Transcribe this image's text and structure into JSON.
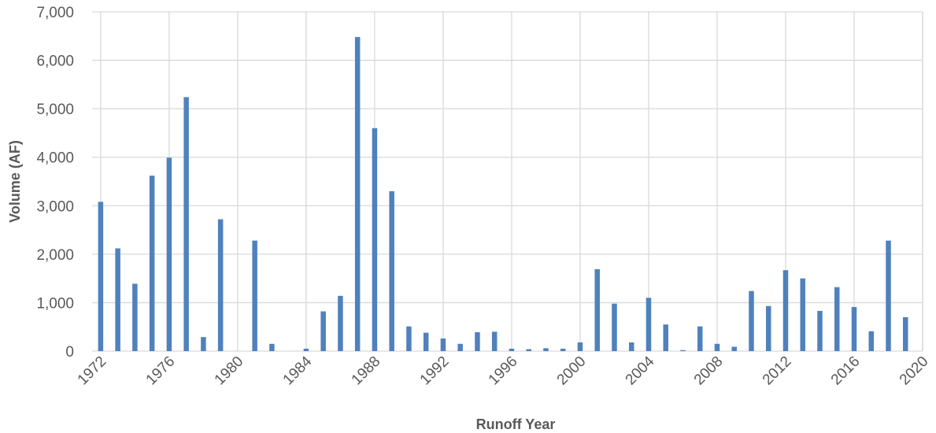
{
  "chart_data": {
    "type": "bar",
    "xlabel": "Runoff Year",
    "ylabel": "Volume (AF)",
    "ylim": [
      0,
      7000
    ],
    "y_ticks": [
      "0",
      "1,000",
      "2,000",
      "3,000",
      "4,000",
      "5,000",
      "6,000",
      "7,000"
    ],
    "x_ticks": [
      "1972",
      "1976",
      "1980",
      "1984",
      "1988",
      "1992",
      "1996",
      "2000",
      "2004",
      "2008",
      "2012",
      "2016",
      "2020"
    ],
    "grid": true,
    "bar_color": "#4f81bd",
    "categories": [
      1972,
      1973,
      1974,
      1975,
      1976,
      1977,
      1978,
      1979,
      1980,
      1981,
      1982,
      1983,
      1984,
      1985,
      1986,
      1987,
      1988,
      1989,
      1990,
      1991,
      1992,
      1993,
      1994,
      1995,
      1996,
      1997,
      1998,
      1999,
      2000,
      2001,
      2002,
      2003,
      2004,
      2005,
      2006,
      2007,
      2008,
      2009,
      2010,
      2011,
      2012,
      2013,
      2014,
      2015,
      2016,
      2017,
      2018,
      2019
    ],
    "values": [
      3080,
      2120,
      1390,
      3620,
      3990,
      5240,
      290,
      2720,
      0,
      2280,
      150,
      0,
      50,
      820,
      1140,
      6480,
      4600,
      3300,
      510,
      380,
      260,
      150,
      390,
      400,
      50,
      40,
      60,
      50,
      180,
      1690,
      980,
      180,
      1100,
      550,
      20,
      510,
      150,
      90,
      1240,
      930,
      1670,
      1500,
      830,
      1320,
      910,
      410,
      2280,
      700
    ]
  }
}
